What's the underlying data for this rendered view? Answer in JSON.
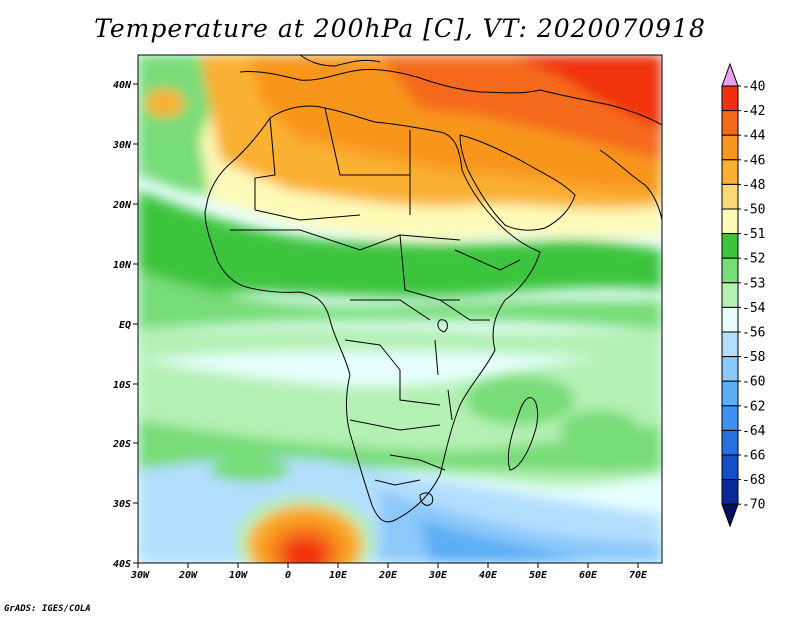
{
  "title": "Temperature at 200hPa [C], VT: 2020070918",
  "credit": "GrADS: IGES/COLA",
  "map": {
    "lon_labels": [
      "30W",
      "20W",
      "10W",
      "0",
      "10E",
      "20E",
      "30E",
      "40E",
      "50E",
      "60E",
      "70E"
    ],
    "lat_labels": [
      "40N",
      "30N",
      "20N",
      "10N",
      "EQ",
      "10S",
      "20S",
      "30S",
      "40S"
    ],
    "lon_range": [
      -30,
      75
    ],
    "lat_range": [
      -40,
      45
    ]
  },
  "colorbar": {
    "levels": [
      "-40",
      "-42",
      "-44",
      "-46",
      "-48",
      "-50",
      "-51",
      "-52",
      "-53",
      "-54",
      "-56",
      "-58",
      "-60",
      "-62",
      "-64",
      "-66",
      "-68",
      "-70"
    ],
    "colors": [
      "#e8a0f0",
      "#f03010",
      "#f56a1a",
      "#f8961e",
      "#fab030",
      "#f8d878",
      "#fdfab8",
      "#3cc43c",
      "#78dc78",
      "#b4f0b4",
      "#e6fefe",
      "#b4defe",
      "#8cc8fa",
      "#5caef6",
      "#3c92f0",
      "#2870e0",
      "#1450c8",
      "#0a2a9a",
      "#041060"
    ]
  },
  "colors": {
    "background": "#ffffff",
    "border": "#000000",
    "coast": "#000000"
  }
}
